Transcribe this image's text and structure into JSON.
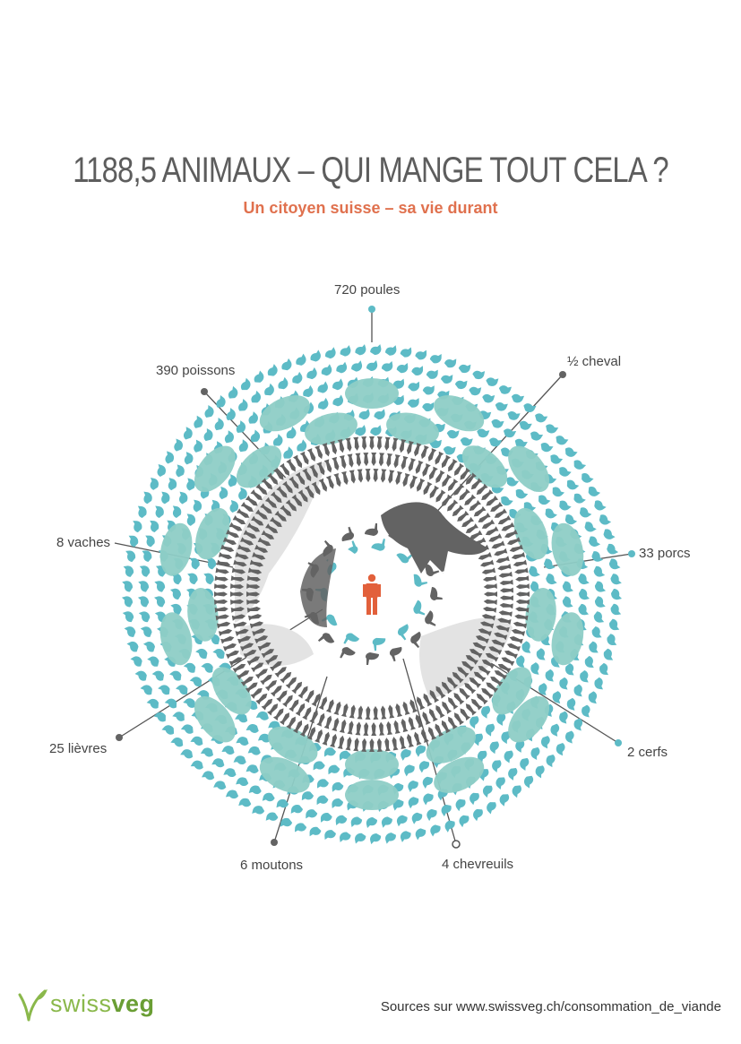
{
  "header": {
    "title": "1188,5 ANIMAUX – QUI MANGE TOUT CELA ?",
    "subtitle": "Un citoyen suisse – sa vie durant"
  },
  "labels": {
    "poules": "720 poules",
    "cheval": "½ cheval",
    "poissons": "390 poissons",
    "vaches": "8 vaches",
    "porcs": "33 porcs",
    "lievres": "25 lièvres",
    "cerfs": "2 cerfs",
    "moutons": "6 moutons",
    "chevreuils": "4 chevreuils"
  },
  "footer": {
    "logo_part1": "swiss",
    "logo_part2": "veg",
    "sources": "Sources sur www.swissveg.ch/consommation_de_viande"
  },
  "colors": {
    "teal": "#5dbbc6",
    "mint": "#8ecdc6",
    "dark": "#636363",
    "light_grey": "#e3e3e3",
    "human": "#e2603b",
    "title": "#5d5d5d",
    "subtitle": "#e0714e",
    "logo": "#8ab84b"
  },
  "icons": {
    "center": "human-icon",
    "logo": "sprout-logo-icon"
  }
}
